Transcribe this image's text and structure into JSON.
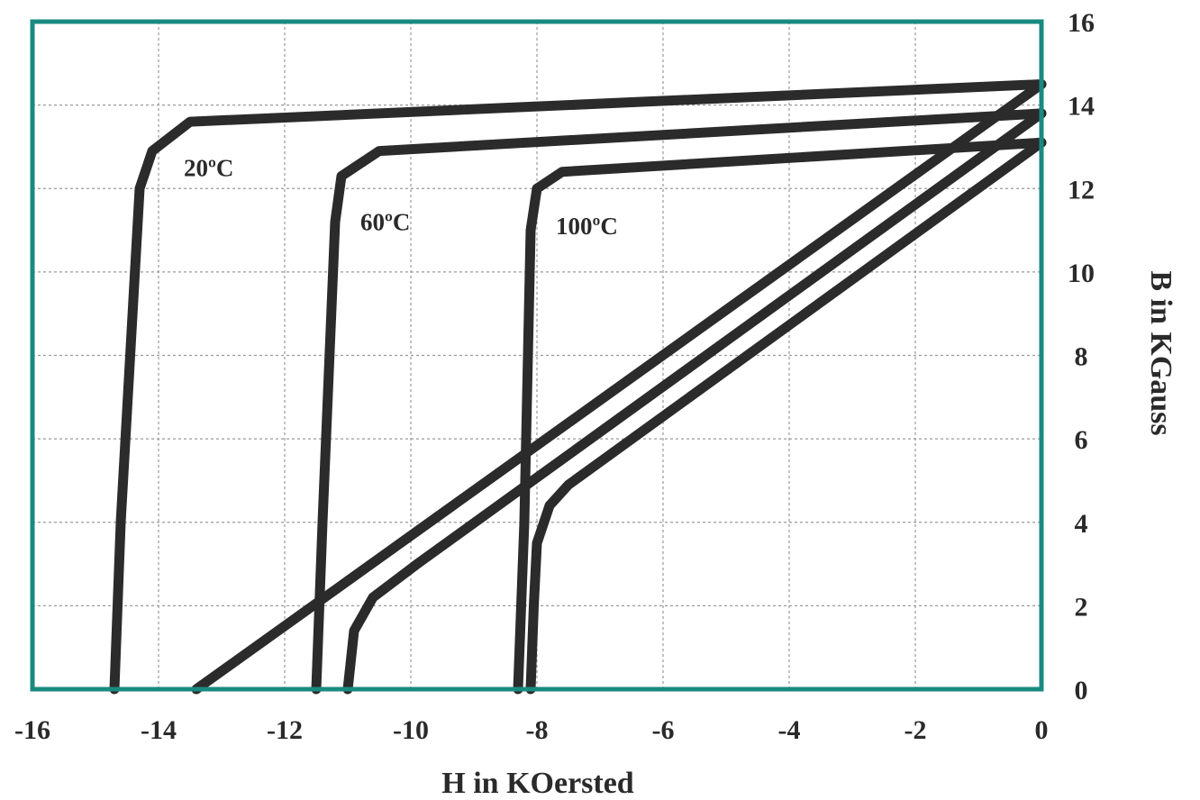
{
  "chart_data": {
    "type": "line",
    "xlabel": "H in KOersted",
    "ylabel": "B in KGauss",
    "xlim": [
      -16,
      0
    ],
    "ylim": [
      0,
      16
    ],
    "x_ticks": [
      "-16",
      "-14",
      "-12",
      "-10",
      "-8",
      "-6",
      "-4",
      "-2",
      "0"
    ],
    "y_ticks": [
      "0",
      "2",
      "4",
      "6",
      "8",
      "10",
      "12",
      "14",
      "16"
    ],
    "grid": true,
    "frame_color": "#1a8a80",
    "curve_color": "#2b2b2b",
    "series": [
      {
        "name": "20ºC",
        "label": "20ºC",
        "label_pos": {
          "x": -13.6,
          "y": 12.3
        },
        "B_curve": [
          [
            0,
            14.5
          ],
          [
            -13.5,
            13.6
          ],
          [
            -14.1,
            12.9
          ],
          [
            -14.3,
            12.0
          ],
          [
            -14.6,
            4.0
          ],
          [
            -14.7,
            0
          ]
        ],
        "J_curve": [
          [
            0,
            14.5
          ],
          [
            -13.4,
            0
          ]
        ]
      },
      {
        "name": "60ºC",
        "label": "60ºC",
        "label_pos": {
          "x": -10.8,
          "y": 11.0
        },
        "B_curve": [
          [
            0,
            13.8
          ],
          [
            -10.5,
            12.9
          ],
          [
            -11.1,
            12.3
          ],
          [
            -11.2,
            11.2
          ],
          [
            -11.4,
            4.0
          ],
          [
            -11.5,
            0
          ]
        ],
        "J_curve": [
          [
            0,
            13.8
          ],
          [
            -9.9,
            3.0
          ],
          [
            -10.6,
            2.2
          ],
          [
            -10.9,
            1.4
          ],
          [
            -11.0,
            0
          ]
        ]
      },
      {
        "name": "100ºC",
        "label": "100ºC",
        "label_pos": {
          "x": -7.7,
          "y": 10.9
        },
        "B_curve": [
          [
            0,
            13.1
          ],
          [
            -7.6,
            12.4
          ],
          [
            -8.0,
            12.0
          ],
          [
            -8.1,
            11.0
          ],
          [
            -8.2,
            4.0
          ],
          [
            -8.3,
            0
          ]
        ],
        "J_curve": [
          [
            0,
            13.1
          ],
          [
            -7.5,
            4.9
          ],
          [
            -7.8,
            4.4
          ],
          [
            -8.0,
            3.5
          ],
          [
            -8.05,
            2.0
          ],
          [
            -8.1,
            0
          ]
        ]
      }
    ]
  }
}
